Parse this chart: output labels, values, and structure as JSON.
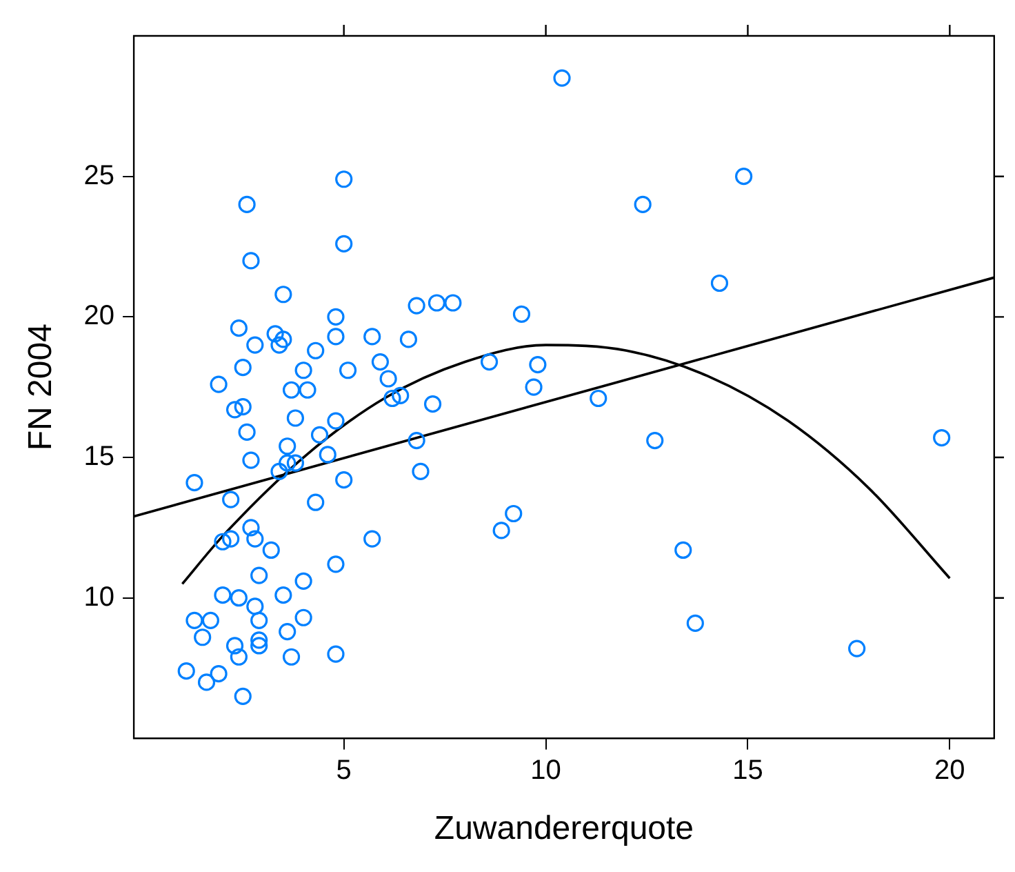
{
  "chart_data": {
    "type": "scatter",
    "xlabel": "Zuwandererquote",
    "ylabel": "FN 2004",
    "xlim": [
      -0.2,
      21.1
    ],
    "ylim": [
      5,
      30
    ],
    "xticks": [
      5,
      10,
      15,
      20
    ],
    "yticks": [
      10,
      15,
      20,
      25
    ],
    "grid": false,
    "legend": false,
    "series": [
      {
        "type": "scatter",
        "color": "#0080ff",
        "marker": "circle",
        "x": [
          1.3,
          2.2,
          2.0,
          2.2,
          2.7,
          2.8,
          3.2,
          2.9,
          2.0,
          2.4,
          2.8,
          1.3,
          1.7,
          1.5,
          2.9,
          3.6,
          4.0,
          2.3,
          2.4,
          2.9,
          2.9,
          3.7,
          4.8,
          3.5,
          4.0,
          4.8,
          5.7,
          4.3,
          5.0,
          6.8,
          6.9,
          1.1,
          1.6,
          1.9,
          2.5,
          3.4,
          3.6,
          3.8,
          2.7,
          2.6,
          3.6,
          4.6,
          4.4,
          5.0,
          2.6,
          5.0,
          2.7,
          3.5,
          4.8,
          6.8,
          7.3,
          7.7,
          2.4,
          3.3,
          3.5,
          3.4,
          2.8,
          4.8,
          5.7,
          6.6,
          4.3,
          2.5,
          4.0,
          5.1,
          5.9,
          1.9,
          6.1,
          6.2,
          6.4,
          3.7,
          4.1,
          7.2,
          2.3,
          2.5,
          3.8,
          4.8,
          9.4,
          8.6,
          9.8,
          9.7,
          9.2,
          8.9,
          10.4,
          14.9,
          12.4,
          14.3,
          11.3,
          12.7,
          19.8,
          13.4,
          13.7,
          17.7
        ],
        "values": [
          14.1,
          13.5,
          12.0,
          12.1,
          12.5,
          12.1,
          11.7,
          10.8,
          10.1,
          10.0,
          9.7,
          9.2,
          9.2,
          8.6,
          9.2,
          8.8,
          9.3,
          8.3,
          7.9,
          8.5,
          8.3,
          7.9,
          8.0,
          10.1,
          10.6,
          11.2,
          12.1,
          13.4,
          14.2,
          15.6,
          14.5,
          7.4,
          7.0,
          7.3,
          6.5,
          14.5,
          14.8,
          14.8,
          14.9,
          15.9,
          15.4,
          15.1,
          15.8,
          24.9,
          24.0,
          22.6,
          22.0,
          20.8,
          20.0,
          20.4,
          20.5,
          20.5,
          19.6,
          19.4,
          19.2,
          19.0,
          19.0,
          19.3,
          19.3,
          19.2,
          18.8,
          18.2,
          18.1,
          18.1,
          18.4,
          17.6,
          17.8,
          17.1,
          17.2,
          17.4,
          17.4,
          16.9,
          16.7,
          16.8,
          16.4,
          16.3,
          20.1,
          18.4,
          18.3,
          17.5,
          13.0,
          12.4,
          28.5,
          25.0,
          24.0,
          21.2,
          17.1,
          15.6,
          15.7,
          11.7,
          9.1,
          8.2
        ]
      },
      {
        "type": "line",
        "color": "#000000",
        "marker": "none",
        "x": [
          -0.2,
          21.1
        ],
        "values": [
          12.9,
          21.4
        ]
      },
      {
        "type": "line",
        "color": "#000000",
        "marker": "none",
        "x": [
          1.0,
          2,
          4,
          6,
          8,
          10,
          12,
          14,
          16,
          18,
          20
        ],
        "values": [
          10.5,
          12.2,
          15.0,
          17.1,
          18.4,
          19.0,
          18.8,
          17.9,
          16.3,
          13.9,
          10.7
        ]
      }
    ]
  }
}
